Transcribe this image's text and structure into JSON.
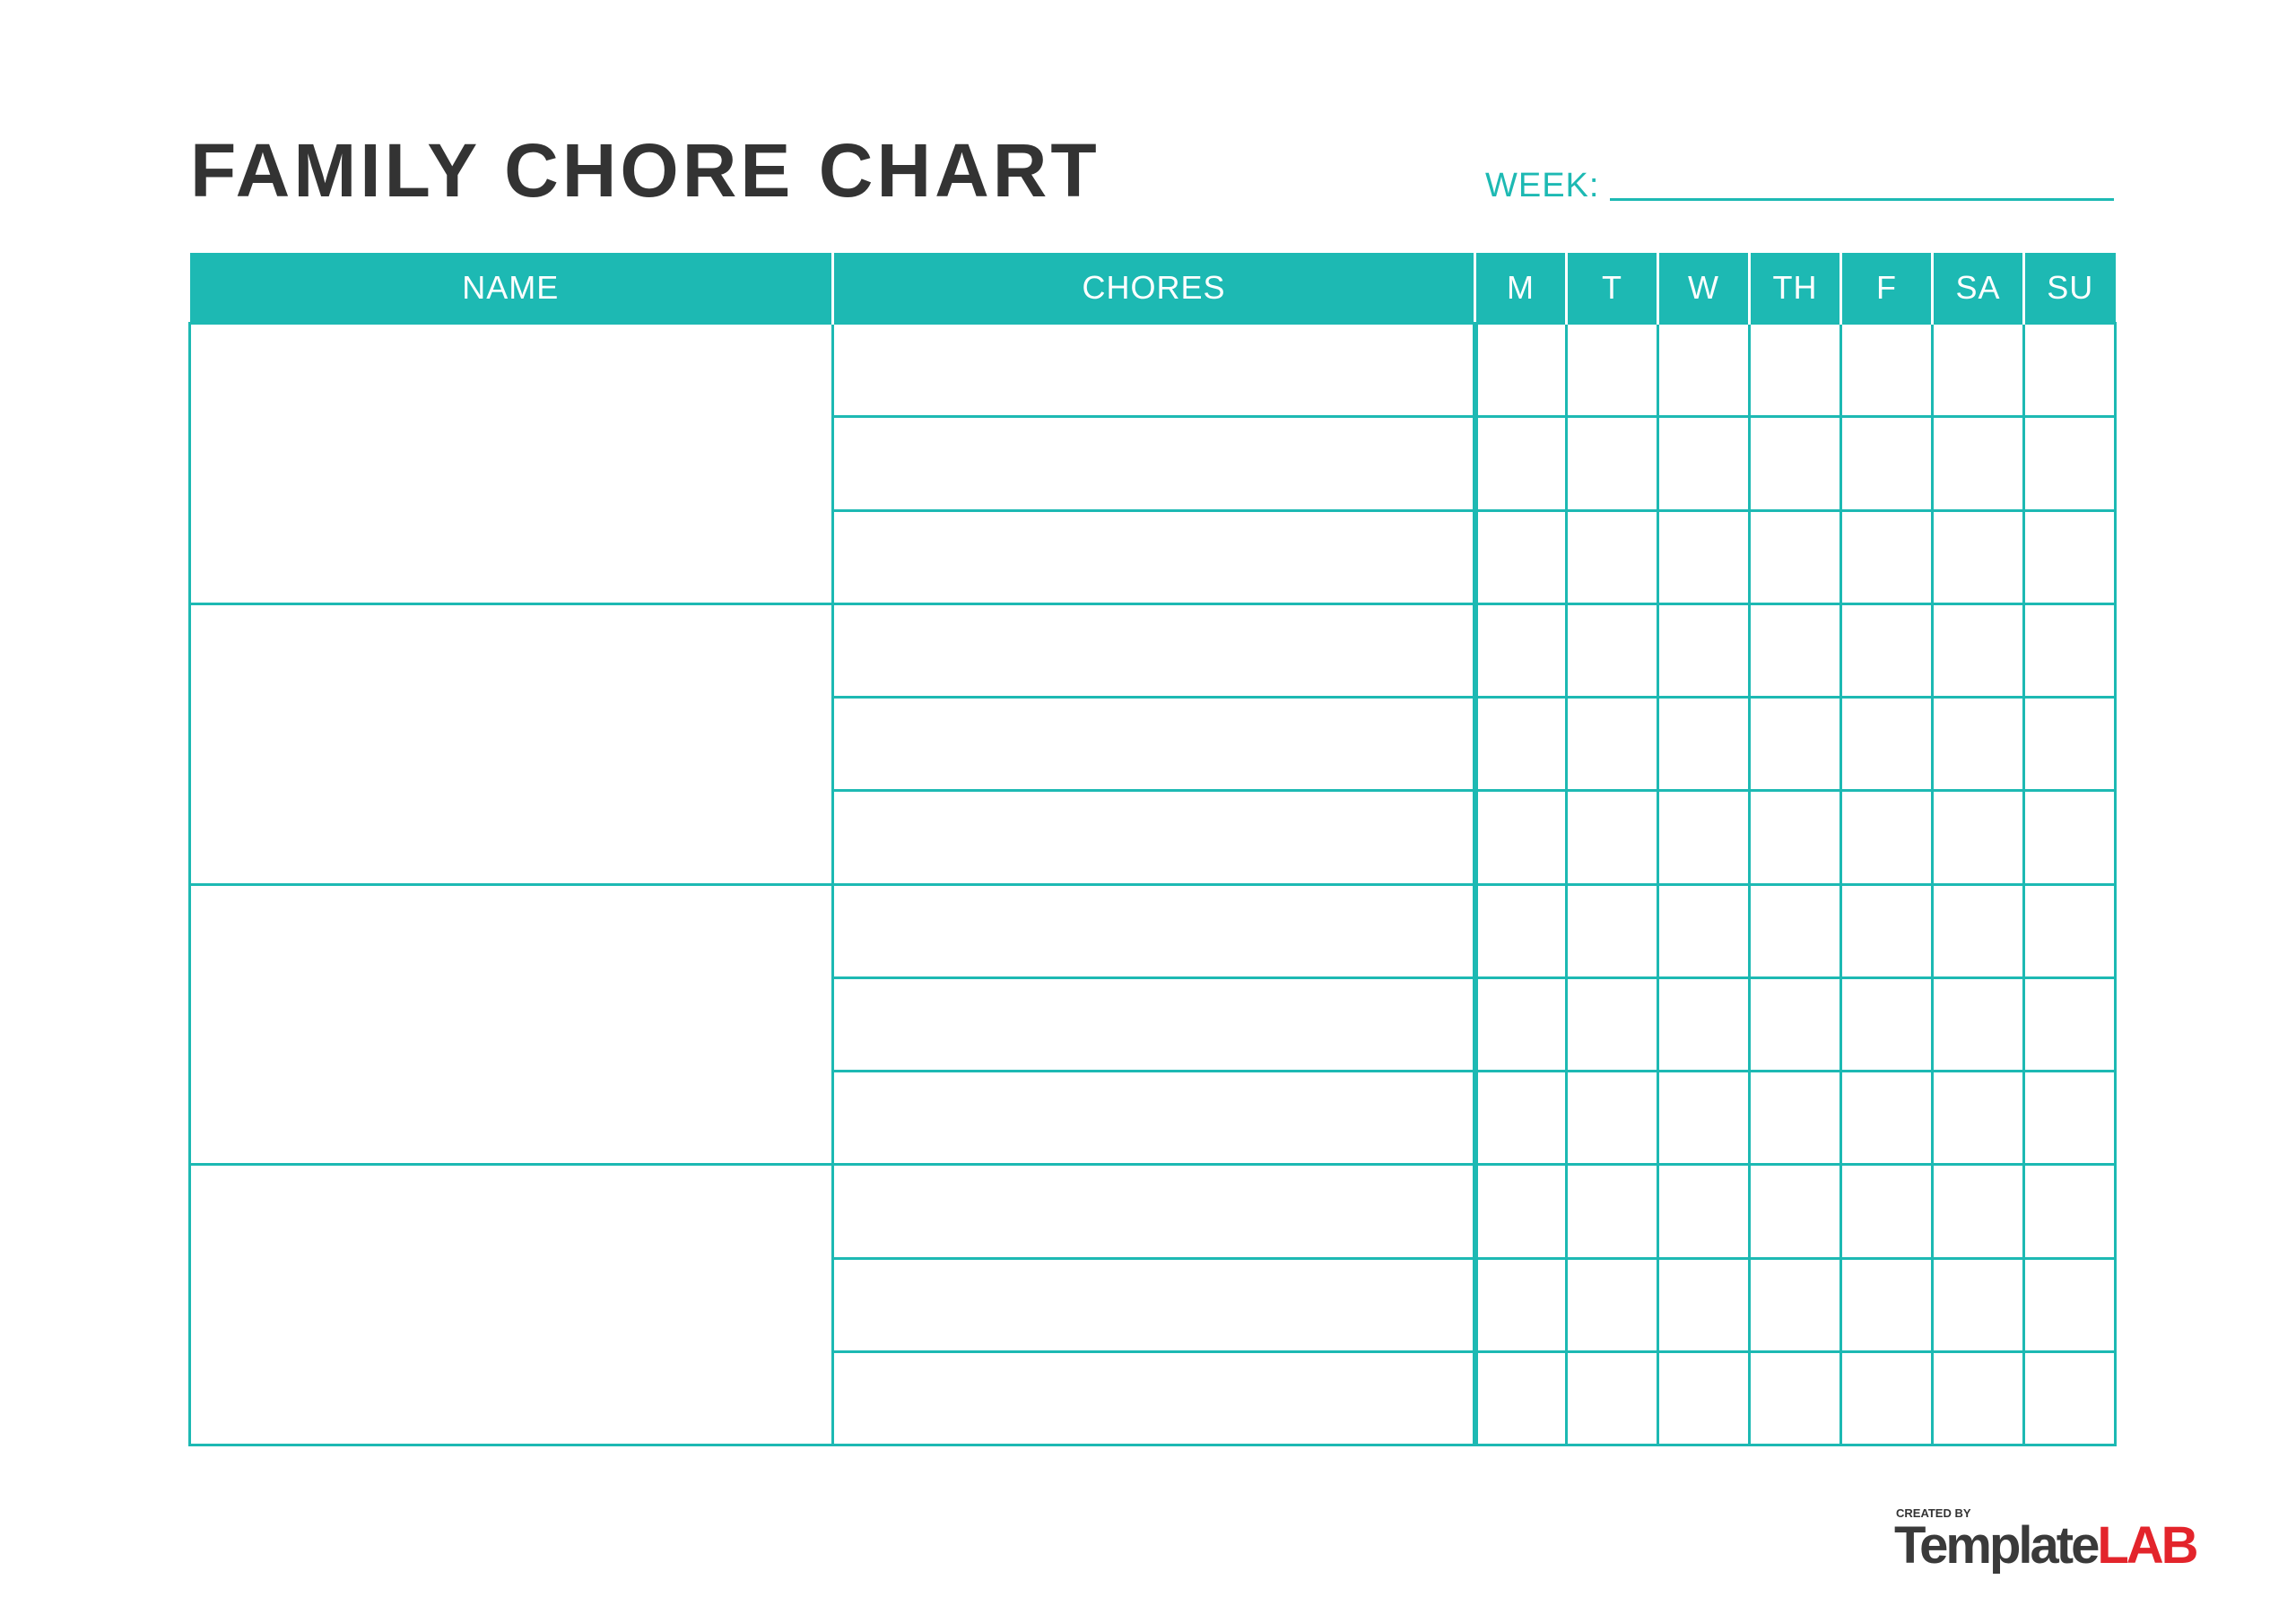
{
  "title": "FAMILY CHORE CHART",
  "week_label": "WEEK:",
  "columns": {
    "name": "NAME",
    "chores": "CHORES",
    "days": [
      "M",
      "T",
      "W",
      "TH",
      "F",
      "SA",
      "SU"
    ]
  },
  "people_count": 4,
  "chores_per_person": 3,
  "colors": {
    "accent": "#1db9b3",
    "title": "#333333",
    "logo_red": "#e3242b"
  },
  "logo": {
    "created_by": "CREATED BY",
    "template": "Template",
    "lab": "LAB"
  }
}
